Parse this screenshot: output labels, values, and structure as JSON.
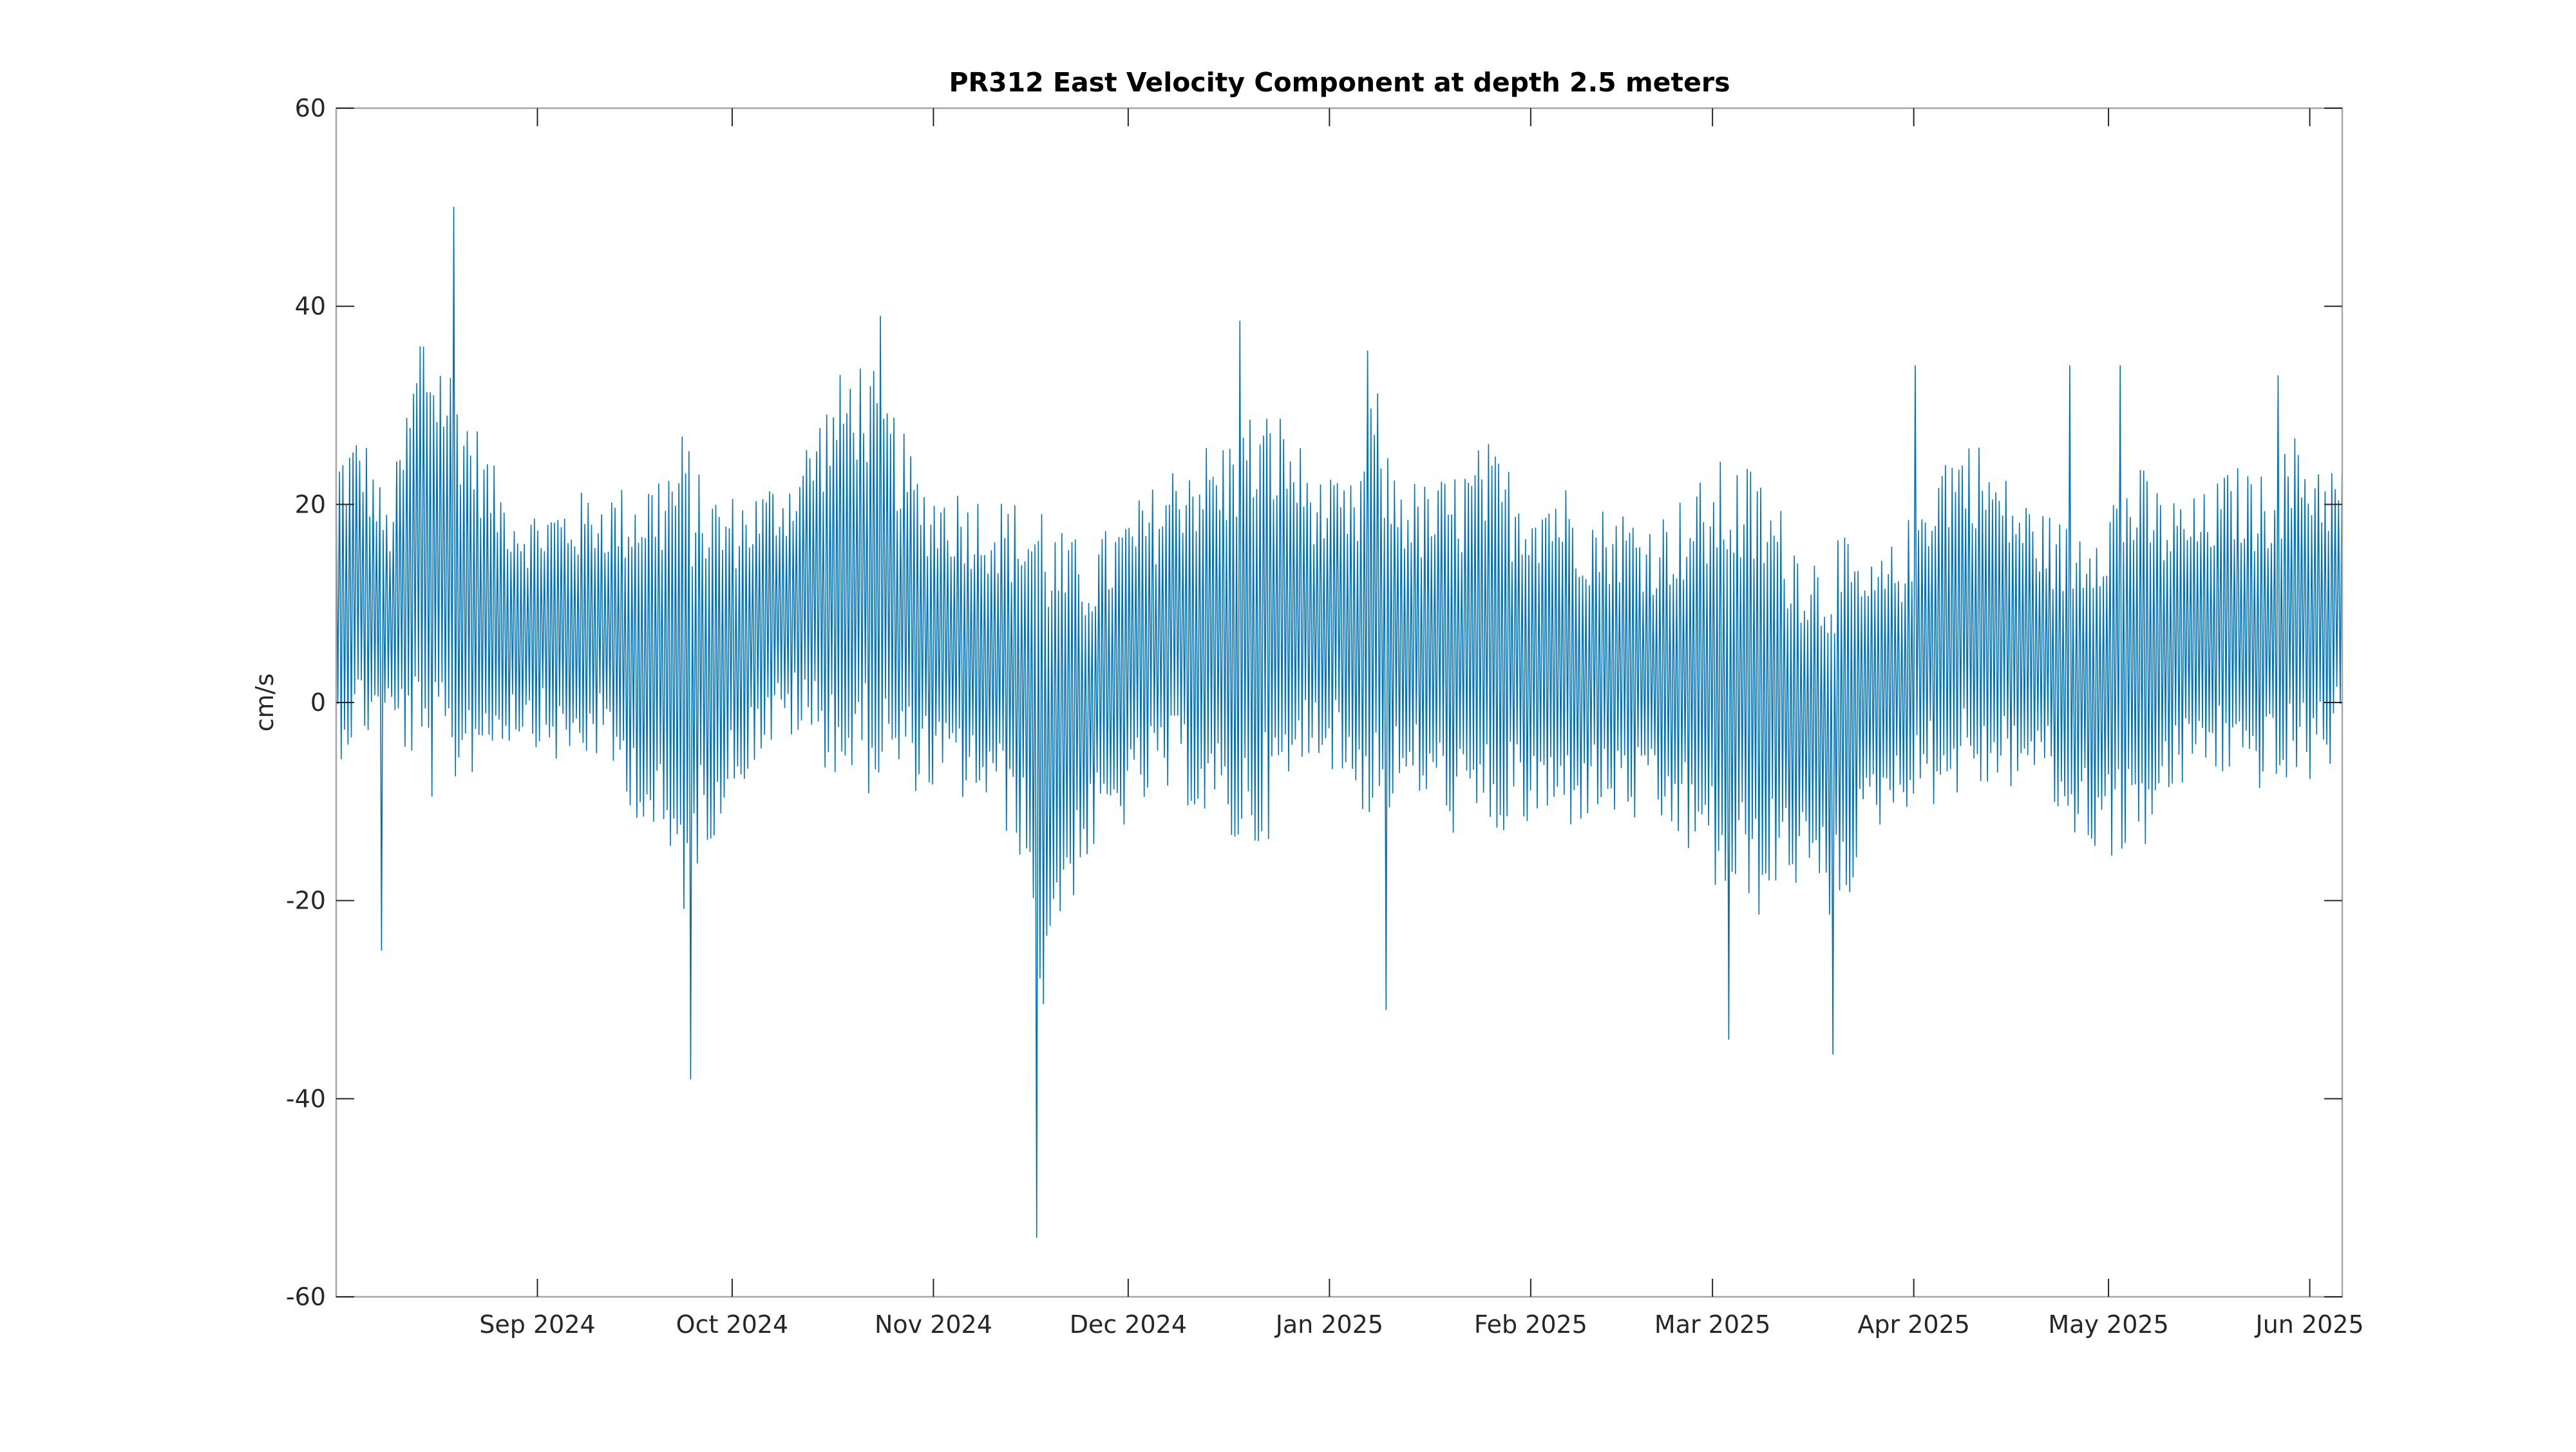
{
  "chart_data": {
    "type": "line",
    "title": "PR312 East Velocity Component at depth 2.5 meters",
    "xlabel": "",
    "ylabel": "cm/s",
    "xlim": [
      "2024-08-01",
      "2025-06-06"
    ],
    "ylim": [
      -60,
      60
    ],
    "yticks": [
      -60,
      -40,
      -20,
      0,
      20,
      40,
      60
    ],
    "xticks": [
      {
        "date": "2024-09-01",
        "label": "Sep 2024"
      },
      {
        "date": "2024-10-01",
        "label": "Oct 2024"
      },
      {
        "date": "2024-11-01",
        "label": "Nov 2024"
      },
      {
        "date": "2024-12-01",
        "label": "Dec 2024"
      },
      {
        "date": "2025-01-01",
        "label": "Jan 2025"
      },
      {
        "date": "2025-02-01",
        "label": "Feb 2025"
      },
      {
        "date": "2025-03-01",
        "label": "Mar 2025"
      },
      {
        "date": "2025-04-01",
        "label": "Apr 2025"
      },
      {
        "date": "2025-05-01",
        "label": "May 2025"
      },
      {
        "date": "2025-06-01",
        "label": "Jun 2025"
      }
    ],
    "grid": false,
    "line_color": "#0072bd",
    "series": [
      {
        "name": "",
        "resolution": "semi-diurnal envelope (approx. every 12.4 h)",
        "x": [
          "2024-08-01",
          "2024-08-05",
          "2024-08-09",
          "2024-08-13",
          "2024-08-14",
          "2024-08-18",
          "2024-08-22",
          "2024-08-26",
          "2024-08-30",
          "2024-09-05",
          "2024-09-10",
          "2024-09-15",
          "2024-09-20",
          "2024-09-24",
          "2024-09-25",
          "2024-09-30",
          "2024-10-05",
          "2024-10-10",
          "2024-10-15",
          "2024-10-20",
          "2024-10-24",
          "2024-10-30",
          "2024-11-05",
          "2024-11-10",
          "2024-11-15",
          "2024-11-18",
          "2024-11-20",
          "2024-11-25",
          "2024-11-30",
          "2024-12-05",
          "2024-12-10",
          "2024-12-15",
          "2024-12-20",
          "2024-12-25",
          "2024-12-30",
          "2025-01-05",
          "2025-01-08",
          "2025-01-10",
          "2025-01-15",
          "2025-01-20",
          "2025-01-25",
          "2025-01-30",
          "2025-02-05",
          "2025-02-10",
          "2025-02-15",
          "2025-02-20",
          "2025-02-25",
          "2025-03-03",
          "2025-03-08",
          "2025-03-13",
          "2025-03-18",
          "2025-03-20",
          "2025-03-25",
          "2025-03-30",
          "2025-04-05",
          "2025-04-10",
          "2025-04-15",
          "2025-04-20",
          "2025-04-25",
          "2025-04-30",
          "2025-05-05",
          "2025-05-10",
          "2025-05-15",
          "2025-05-20",
          "2025-05-25",
          "2025-05-30",
          "2025-06-06"
        ],
        "mean": [
          10,
          12,
          8,
          14,
          15,
          13,
          11,
          9,
          8,
          7,
          8,
          6,
          4,
          3,
          3,
          5,
          8,
          10,
          12,
          13,
          12,
          7,
          6,
          5,
          2,
          -5,
          -3,
          0,
          3,
          6,
          8,
          6,
          7,
          9,
          9,
          6,
          10,
          7,
          6,
          5,
          6,
          5,
          5,
          4,
          4,
          3,
          3,
          2,
          1,
          0,
          -3,
          -3,
          0,
          3,
          8,
          9,
          7,
          6,
          2,
          3,
          4,
          5,
          7,
          8,
          7,
          9,
          9
        ],
        "amplitude": [
          14,
          14,
          10,
          18,
          22,
          20,
          16,
          12,
          10,
          12,
          12,
          14,
          18,
          22,
          18,
          14,
          12,
          12,
          16,
          20,
          18,
          14,
          14,
          14,
          16,
          24,
          18,
          14,
          14,
          14,
          16,
          18,
          20,
          18,
          12,
          14,
          20,
          16,
          14,
          16,
          18,
          16,
          16,
          14,
          14,
          14,
          16,
          20,
          20,
          16,
          16,
          18,
          12,
          12,
          16,
          16,
          14,
          12,
          14,
          16,
          18,
          14,
          12,
          14,
          14,
          16,
          13
        ],
        "spikes": [
          {
            "date": "2024-08-19",
            "value": 50
          },
          {
            "date": "2024-08-08",
            "value": -25
          },
          {
            "date": "2024-09-25",
            "value": -38
          },
          {
            "date": "2024-10-24",
            "value": 39
          },
          {
            "date": "2024-11-17",
            "value": -54
          },
          {
            "date": "2024-12-18",
            "value": 38.5
          },
          {
            "date": "2025-01-07",
            "value": 35.5
          },
          {
            "date": "2025-01-10",
            "value": -31
          },
          {
            "date": "2025-03-04",
            "value": -34
          },
          {
            "date": "2025-03-20",
            "value": -35.5
          },
          {
            "date": "2025-04-01",
            "value": 34
          },
          {
            "date": "2025-04-25",
            "value": 34
          },
          {
            "date": "2025-05-03",
            "value": 34
          },
          {
            "date": "2025-05-27",
            "value": 33
          }
        ]
      }
    ]
  }
}
